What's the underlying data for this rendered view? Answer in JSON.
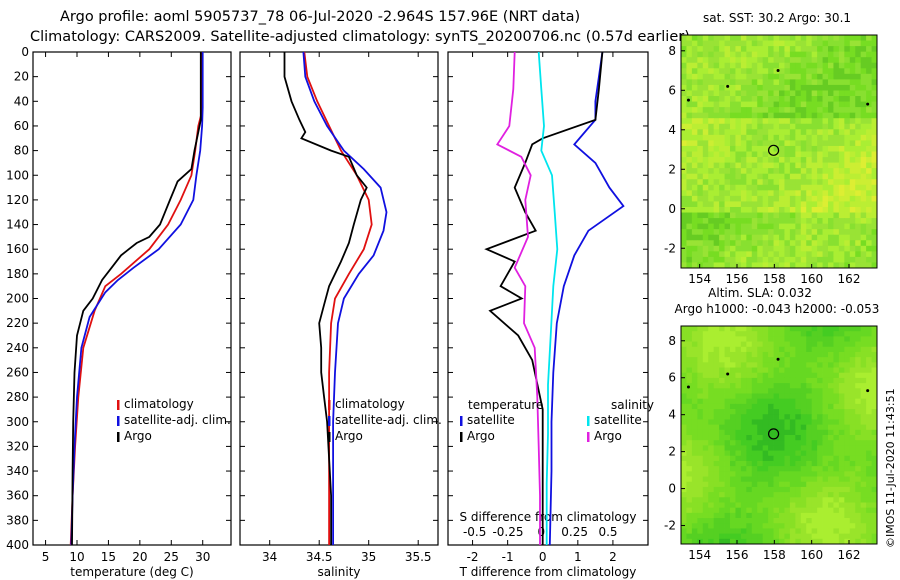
{
  "title": {
    "line1": "Argo profile: aoml 5905737_78 06-Jul-2020 -2.964S 157.96E (NRT data)",
    "line2": "Climatology: CARS2009. Satellite-adjusted climatology: synTS_20200706.nc (0.57d earlier)"
  },
  "credit": "©IMOS 11-Jul-2020 11:43:51",
  "colors": {
    "argo": "#000000",
    "clim": "#e01010",
    "sat": "#1010e0",
    "sal_sat": "#00e5ee",
    "sal_argo": "#e020e0"
  },
  "chart_data": [
    {
      "id": "temperature",
      "type": "line",
      "xlabel": "temperature (deg C)",
      "ylabel": "",
      "xlim": [
        3,
        34.5
      ],
      "ylim": [
        400,
        0
      ],
      "xticks": [
        5,
        10,
        15,
        20,
        25,
        30
      ],
      "yticks": [
        0,
        20,
        40,
        60,
        80,
        100,
        120,
        140,
        160,
        180,
        200,
        220,
        240,
        260,
        280,
        300,
        320,
        340,
        360,
        380,
        400
      ],
      "legend": [
        "climatology",
        "satellite-adj. clim.",
        "Argo"
      ],
      "series": [
        {
          "name": "climatology",
          "color": "#e01010",
          "points": [
            [
              29.9,
              0
            ],
            [
              29.8,
              50
            ],
            [
              29.3,
              60
            ],
            [
              28.8,
              80
            ],
            [
              28.2,
              100
            ],
            [
              26.5,
              120
            ],
            [
              24.5,
              140
            ],
            [
              21.5,
              160
            ],
            [
              17.0,
              180
            ],
            [
              14.5,
              190
            ],
            [
              12.8,
              210
            ],
            [
              11.0,
              240
            ],
            [
              10.2,
              280
            ],
            [
              9.7,
              320
            ],
            [
              9.3,
              360
            ],
            [
              9.0,
              400
            ]
          ]
        },
        {
          "name": "satellite-adj. clim.",
          "color": "#1010e0",
          "points": [
            [
              30.0,
              0
            ],
            [
              30.0,
              45
            ],
            [
              29.9,
              60
            ],
            [
              29.6,
              80
            ],
            [
              29.0,
              100
            ],
            [
              28.5,
              120
            ],
            [
              26.5,
              140
            ],
            [
              23.0,
              160
            ],
            [
              19.0,
              175
            ],
            [
              16.5,
              185
            ],
            [
              14.5,
              195
            ],
            [
              12.0,
              215
            ],
            [
              10.7,
              240
            ],
            [
              10.0,
              280
            ],
            [
              9.6,
              320
            ],
            [
              9.3,
              360
            ],
            [
              9.1,
              400
            ]
          ]
        },
        {
          "name": "Argo",
          "color": "#000000",
          "points": [
            [
              29.7,
              0
            ],
            [
              29.7,
              55
            ],
            [
              29.3,
              65
            ],
            [
              28.7,
              80
            ],
            [
              28.2,
              95
            ],
            [
              26.0,
              105
            ],
            [
              25.6,
              110
            ],
            [
              24.8,
              120
            ],
            [
              24.0,
              130
            ],
            [
              23.2,
              140
            ],
            [
              21.5,
              150
            ],
            [
              19.5,
              155
            ],
            [
              17.0,
              165
            ],
            [
              15.5,
              175
            ],
            [
              14.0,
              185
            ],
            [
              12.5,
              200
            ],
            [
              11.0,
              210
            ],
            [
              10.0,
              230
            ],
            [
              9.6,
              260
            ],
            [
              9.4,
              300
            ],
            [
              9.3,
              340
            ],
            [
              9.2,
              400
            ]
          ]
        }
      ]
    },
    {
      "id": "salinity",
      "type": "line",
      "xlabel": "salinity",
      "ylabel": "",
      "xlim": [
        33.7,
        35.7
      ],
      "ylim": [
        400,
        0
      ],
      "xticks": [
        34,
        34.5,
        35,
        35.5
      ],
      "yticks": [
        0,
        20,
        40,
        60,
        80,
        100,
        120,
        140,
        160,
        180,
        200,
        220,
        240,
        260,
        280,
        300,
        320,
        340,
        360,
        380,
        400
      ],
      "legend": [
        "climatology",
        "satellite-adj. clim.",
        "Argo"
      ],
      "series": [
        {
          "name": "climatology",
          "color": "#e01010",
          "points": [
            [
              34.35,
              0
            ],
            [
              34.38,
              20
            ],
            [
              34.48,
              40
            ],
            [
              34.6,
              60
            ],
            [
              34.72,
              80
            ],
            [
              34.88,
              100
            ],
            [
              35.0,
              120
            ],
            [
              35.03,
              140
            ],
            [
              34.95,
              160
            ],
            [
              34.8,
              180
            ],
            [
              34.66,
              200
            ],
            [
              34.62,
              220
            ],
            [
              34.6,
              260
            ],
            [
              34.6,
              300
            ],
            [
              34.6,
              350
            ],
            [
              34.6,
              400
            ]
          ]
        },
        {
          "name": "satellite-adj. clim.",
          "color": "#1010e0",
          "points": [
            [
              34.34,
              0
            ],
            [
              34.36,
              20
            ],
            [
              34.45,
              40
            ],
            [
              34.58,
              60
            ],
            [
              34.75,
              80
            ],
            [
              34.95,
              95
            ],
            [
              35.12,
              110
            ],
            [
              35.18,
              130
            ],
            [
              35.15,
              145
            ],
            [
              35.05,
              165
            ],
            [
              34.9,
              180
            ],
            [
              34.75,
              200
            ],
            [
              34.69,
              220
            ],
            [
              34.66,
              260
            ],
            [
              34.64,
              300
            ],
            [
              34.64,
              350
            ],
            [
              34.64,
              400
            ]
          ]
        },
        {
          "name": "Argo",
          "color": "#000000",
          "points": [
            [
              34.15,
              0
            ],
            [
              34.15,
              20
            ],
            [
              34.22,
              40
            ],
            [
              34.3,
              55
            ],
            [
              34.36,
              65
            ],
            [
              34.32,
              70
            ],
            [
              34.62,
              80
            ],
            [
              34.8,
              85
            ],
            [
              34.88,
              100
            ],
            [
              34.98,
              110
            ],
            [
              34.92,
              120
            ],
            [
              34.85,
              140
            ],
            [
              34.8,
              155
            ],
            [
              34.72,
              170
            ],
            [
              34.6,
              190
            ],
            [
              34.55,
              205
            ],
            [
              34.5,
              220
            ],
            [
              34.52,
              240
            ],
            [
              34.52,
              260
            ],
            [
              34.55,
              280
            ],
            [
              34.58,
              300
            ],
            [
              34.6,
              330
            ],
            [
              34.62,
              360
            ],
            [
              34.62,
              400
            ]
          ]
        }
      ]
    },
    {
      "id": "difference",
      "type": "line",
      "xlabel": "T difference from climatology",
      "x2label": "S difference from climatology",
      "xlim": [
        -2.7,
        3.0
      ],
      "x2lim": [
        -0.7,
        0.8
      ],
      "ylim": [
        400,
        0
      ],
      "xticks": [
        -2,
        -1,
        0,
        1,
        2
      ],
      "x2ticks": [
        -0.5,
        -0.25,
        0,
        0.25,
        0.5
      ],
      "x2ticklabels": [
        "-0.5",
        "-0.25",
        "0",
        "0.25",
        "0.5"
      ],
      "yticks": [
        0,
        20,
        40,
        60,
        80,
        100,
        120,
        140,
        160,
        180,
        200,
        220,
        240,
        260,
        280,
        300,
        320,
        340,
        360,
        380,
        400
      ],
      "legend": {
        "temperature_header": "temperature",
        "salinity_header": "salinity",
        "temperature": [
          "satellite",
          "Argo"
        ],
        "salinity": [
          "satellite",
          "Argo"
        ]
      },
      "series": [
        {
          "name": "T satellite",
          "axis": "T",
          "color": "#1010e0",
          "points": [
            [
              1.7,
              0
            ],
            [
              1.6,
              20
            ],
            [
              1.5,
              40
            ],
            [
              1.5,
              55
            ],
            [
              1.2,
              65
            ],
            [
              0.9,
              75
            ],
            [
              1.5,
              90
            ],
            [
              1.9,
              110
            ],
            [
              2.3,
              125
            ],
            [
              1.3,
              145
            ],
            [
              0.9,
              165
            ],
            [
              0.6,
              190
            ],
            [
              0.4,
              220
            ],
            [
              0.3,
              260
            ],
            [
              0.25,
              300
            ],
            [
              0.25,
              340
            ],
            [
              0.2,
              400
            ]
          ]
        },
        {
          "name": "T Argo",
          "axis": "T",
          "color": "#000000",
          "points": [
            [
              1.7,
              0
            ],
            [
              1.6,
              30
            ],
            [
              1.5,
              55
            ],
            [
              0.0,
              70
            ],
            [
              -0.3,
              75
            ],
            [
              -0.5,
              90
            ],
            [
              -0.8,
              110
            ],
            [
              -0.5,
              130
            ],
            [
              -0.2,
              145
            ],
            [
              -1.6,
              160
            ],
            [
              -0.8,
              170
            ],
            [
              -1.2,
              190
            ],
            [
              -0.6,
              200
            ],
            [
              -1.5,
              210
            ],
            [
              -0.7,
              230
            ],
            [
              -0.3,
              250
            ],
            [
              0.0,
              290
            ],
            [
              0.0,
              330
            ],
            [
              0.0,
              400
            ]
          ]
        },
        {
          "name": "S satellite",
          "axis": "S",
          "color": "#00e5ee",
          "points": [
            [
              -0.02,
              0
            ],
            [
              0.0,
              30
            ],
            [
              0.02,
              60
            ],
            [
              0.0,
              80
            ],
            [
              0.08,
              100
            ],
            [
              0.1,
              130
            ],
            [
              0.12,
              160
            ],
            [
              0.09,
              190
            ],
            [
              0.07,
              230
            ],
            [
              0.05,
              270
            ],
            [
              0.05,
              310
            ],
            [
              0.04,
              350
            ],
            [
              0.04,
              400
            ]
          ]
        },
        {
          "name": "S Argo",
          "axis": "S",
          "color": "#e020e0",
          "points": [
            [
              -0.2,
              0
            ],
            [
              -0.21,
              30
            ],
            [
              -0.24,
              60
            ],
            [
              -0.33,
              75
            ],
            [
              -0.15,
              85
            ],
            [
              -0.08,
              100
            ],
            [
              -0.12,
              120
            ],
            [
              -0.1,
              150
            ],
            [
              -0.2,
              175
            ],
            [
              -0.12,
              190
            ],
            [
              -0.13,
              220
            ],
            [
              -0.05,
              240
            ],
            [
              -0.03,
              280
            ],
            [
              -0.02,
              320
            ],
            [
              -0.01,
              360
            ],
            [
              -0.01,
              400
            ]
          ]
        }
      ]
    },
    {
      "id": "sst_map",
      "type": "heatmap",
      "title": "sat. SST: 30.2 Argo: 30.1",
      "xlim": [
        153,
        163.5
      ],
      "ylim": [
        -3,
        8.8
      ],
      "xticks": [
        154,
        156,
        158,
        160,
        162
      ],
      "yticks": [
        -2,
        0,
        2,
        4,
        6,
        8
      ],
      "marker": [
        157.96,
        2.96
      ],
      "values": {
        "sat_sst": 30.2,
        "argo_sst": 30.1
      }
    },
    {
      "id": "sla_map",
      "type": "heatmap",
      "title": "Altim. SLA: 0.032",
      "subtitle": "Argo h1000: -0.043 h2000: -0.053",
      "xlim": [
        153,
        163.5
      ],
      "ylim": [
        -3,
        8.8
      ],
      "xticks": [
        154,
        156,
        158,
        160,
        162
      ],
      "yticks": [
        -2,
        0,
        2,
        4,
        6,
        8
      ],
      "marker": [
        157.96,
        2.96
      ],
      "values": {
        "sla": 0.032,
        "h1000": -0.043,
        "h2000": -0.053
      }
    }
  ]
}
